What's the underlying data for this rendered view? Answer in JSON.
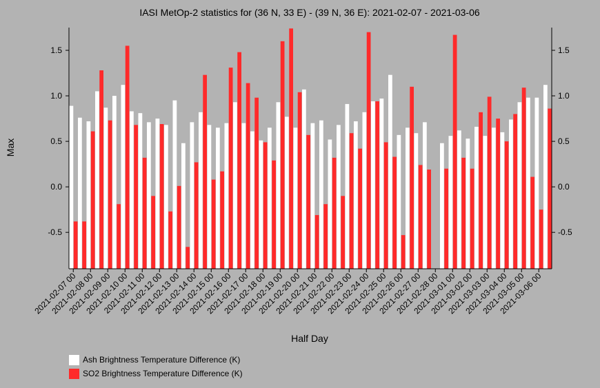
{
  "chart_data": {
    "type": "bar",
    "title": "IASI MetOp-2 statistics for (36 N, 33 E) - (39 N, 36 E): 2021-02-07 - 2021-03-06",
    "xlabel": "Half Day",
    "ylabel": "Max",
    "ylim": [
      -0.9,
      1.75
    ],
    "yticks": [
      -0.5,
      0.0,
      0.5,
      1.0,
      1.5
    ],
    "ytick_labels": [
      "-0.5",
      "0.0",
      "0.5",
      "1.0",
      "1.5"
    ],
    "grid": false,
    "legend_position": "bottom-left",
    "categories": [
      "2021-02-07 00",
      "2021-02-07 12",
      "2021-02-08 00",
      "2021-02-08 12",
      "2021-02-09 00",
      "2021-02-09 12",
      "2021-02-10 00",
      "2021-02-10 12",
      "2021-02-11 00",
      "2021-02-11 12",
      "2021-02-12 00",
      "2021-02-12 12",
      "2021-02-13 00",
      "2021-02-13 12",
      "2021-02-14 00",
      "2021-02-14 12",
      "2021-02-15 00",
      "2021-02-15 12",
      "2021-02-16 00",
      "2021-02-16 12",
      "2021-02-17 00",
      "2021-02-17 12",
      "2021-02-18 00",
      "2021-02-18 12",
      "2021-02-19 00",
      "2021-02-19 12",
      "2021-02-20 00",
      "2021-02-20 12",
      "2021-02-21 00",
      "2021-02-21 12",
      "2021-02-22 00",
      "2021-02-22 12",
      "2021-02-23 00",
      "2021-02-23 12",
      "2021-02-24 00",
      "2021-02-24 12",
      "2021-02-25 00",
      "2021-02-25 12",
      "2021-02-26 00",
      "2021-02-26 12",
      "2021-02-27 00",
      "2021-02-27 12",
      "2021-02-28 00",
      "2021-02-28 12",
      "2021-03-01 00",
      "2021-03-01 12",
      "2021-03-02 00",
      "2021-03-02 12",
      "2021-03-03 00",
      "2021-03-03 12",
      "2021-03-04 00",
      "2021-03-04 12",
      "2021-03-05 00",
      "2021-03-05 12",
      "2021-03-06 00",
      "2021-03-06 12"
    ],
    "xtick_labels": [
      "2021-02-07 00",
      "2021-02-08 00",
      "2021-02-09 00",
      "2021-02-10 00",
      "2021-02-11 00",
      "2021-02-12 00",
      "2021-02-13 00",
      "2021-02-14 00",
      "2021-02-15 00",
      "2021-02-16 00",
      "2021-02-17 00",
      "2021-02-18 00",
      "2021-02-19 00",
      "2021-02-20 00",
      "2021-02-21 00",
      "2021-02-22 00",
      "2021-02-23 00",
      "2021-02-24 00",
      "2021-02-25 00",
      "2021-02-26 00",
      "2021-02-27 00",
      "2021-02-28 00",
      "2021-03-01 00",
      "2021-03-02 00",
      "2021-03-03 00",
      "2021-03-04 00",
      "2021-03-05 00",
      "2021-03-06 00"
    ],
    "series": [
      {
        "name": "Ash Brightness Temperature Difference (K)",
        "color": "#ffffff",
        "values": [
          0.89,
          0.76,
          0.72,
          1.05,
          0.87,
          1.0,
          1.12,
          0.83,
          0.81,
          0.71,
          0.75,
          0.68,
          0.95,
          0.48,
          0.71,
          0.82,
          0.68,
          0.65,
          0.7,
          0.93,
          0.7,
          0.61,
          0.51,
          0.65,
          0.93,
          0.77,
          0.65,
          1.07,
          0.7,
          0.73,
          0.52,
          0.68,
          0.91,
          0.72,
          0.82,
          0.94,
          0.97,
          1.23,
          0.57,
          0.65,
          0.59,
          0.71,
          null,
          0.48,
          0.56,
          0.62,
          0.53,
          0.66,
          0.56,
          0.65,
          0.6,
          0.74,
          0.93,
          0.98,
          0.98,
          1.12
        ]
      },
      {
        "name": "SO2 Brightness Temperature Difference (K)",
        "color": "#ff2a2a",
        "values": [
          -0.38,
          -0.38,
          0.61,
          1.28,
          0.73,
          -0.19,
          1.55,
          0.68,
          0.32,
          -0.1,
          0.69,
          -0.27,
          0.01,
          -0.66,
          0.27,
          1.23,
          0.08,
          0.17,
          1.31,
          1.48,
          1.14,
          0.98,
          0.49,
          0.29,
          1.6,
          1.74,
          1.04,
          0.57,
          -0.31,
          -0.19,
          0.32,
          -0.1,
          0.59,
          0.42,
          1.7,
          0.94,
          0.49,
          0.33,
          -0.53,
          1.1,
          0.24,
          0.19,
          null,
          0.2,
          1.67,
          0.32,
          0.2,
          0.82,
          0.99,
          0.75,
          0.5,
          0.8,
          1.09,
          0.11,
          -0.25,
          0.86
        ]
      }
    ]
  },
  "legend": {
    "items": [
      {
        "label": "Ash Brightness Temperature Difference (K)",
        "color": "#ffffff"
      },
      {
        "label": "SO2 Brightness Temperature Difference (K)",
        "color": "#ff2a2a"
      }
    ]
  }
}
